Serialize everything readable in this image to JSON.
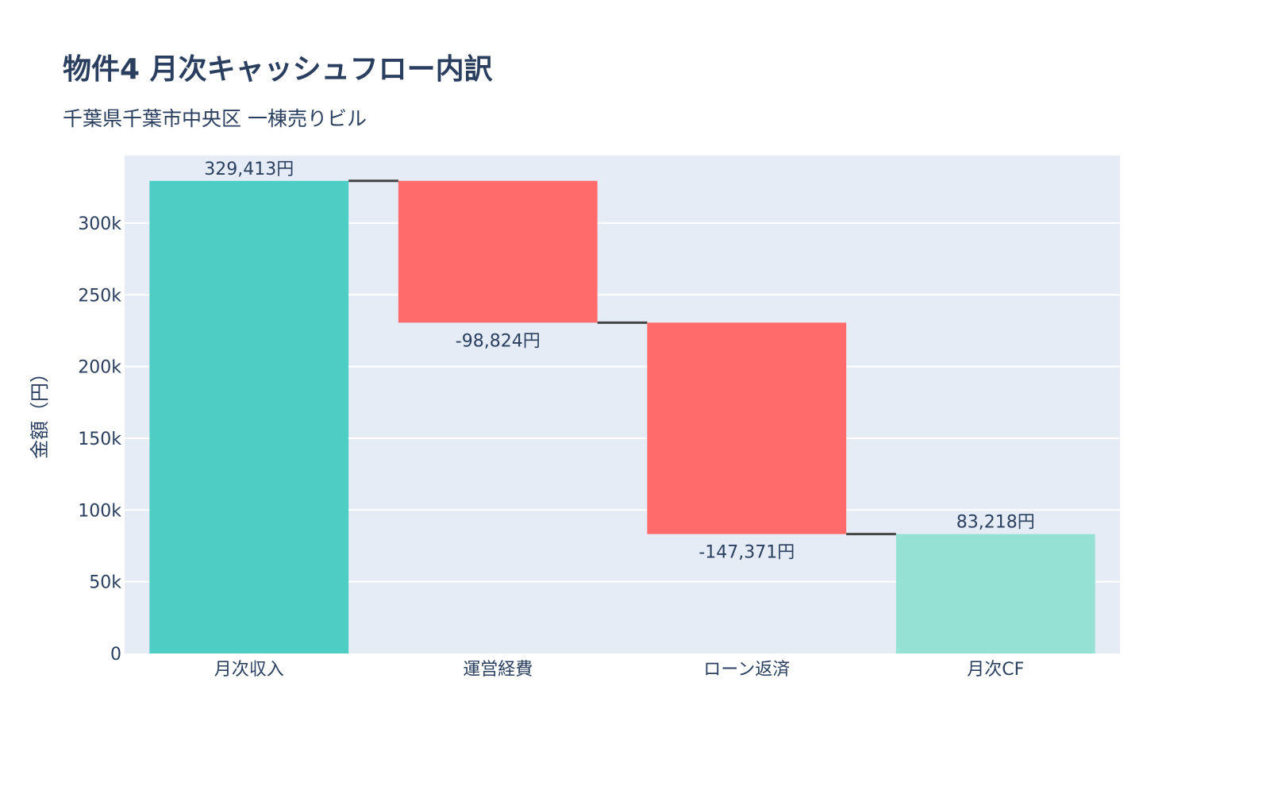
{
  "chart_data": {
    "type": "waterfall",
    "title": "物件4 月次キャッシュフロー内訳",
    "subtitle": "千葉県千葉市中央区 一棟売りビル",
    "ylabel": "金額（円）",
    "xlabel": "",
    "categories": [
      "月次収入",
      "運営経費",
      "ローン返済",
      "月次CF"
    ],
    "measures": [
      "relative",
      "relative",
      "relative",
      "total"
    ],
    "values": [
      329413,
      -98824,
      -147371,
      83218
    ],
    "text_labels": [
      "329,413円",
      "-98,824円",
      "-147,371円",
      "83,218円"
    ],
    "ylim": [
      0,
      347000
    ],
    "yticks": [
      0,
      50000,
      100000,
      150000,
      200000,
      250000,
      300000
    ],
    "ytick_labels": [
      "0",
      "50k",
      "100k",
      "150k",
      "200k",
      "250k",
      "300k"
    ],
    "grid": true,
    "legend": "none",
    "colors": {
      "increasing": "#4ECDC4",
      "decreasing": "#FF6B6B",
      "total": "#95E1D3",
      "connector": "#444444",
      "plot_bg": "#E5ECF6",
      "grid": "#FFFFFF"
    }
  }
}
